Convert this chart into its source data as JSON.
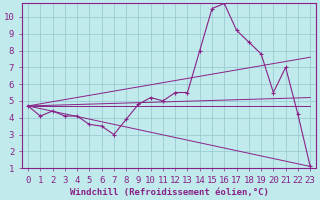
{
  "xlabel": "Windchill (Refroidissement éolien,°C)",
  "xlim": [
    -0.5,
    23.5
  ],
  "ylim": [
    1,
    10.8
  ],
  "xticks": [
    0,
    1,
    2,
    3,
    4,
    5,
    6,
    7,
    8,
    9,
    10,
    11,
    12,
    13,
    14,
    15,
    16,
    17,
    18,
    19,
    20,
    21,
    22,
    23
  ],
  "yticks": [
    1,
    2,
    3,
    4,
    5,
    6,
    7,
    8,
    9,
    10
  ],
  "bg_color": "#c0eaec",
  "grid_color": "#9bcdd4",
  "line_color": "#882288",
  "main_line": {
    "x": [
      0,
      1,
      2,
      3,
      4,
      5,
      6,
      7,
      8,
      9,
      10,
      11,
      12,
      13,
      14,
      15,
      16,
      17,
      18,
      19,
      20,
      21,
      22,
      23
    ],
    "y": [
      4.7,
      4.1,
      4.4,
      4.1,
      4.1,
      3.6,
      3.5,
      3.0,
      3.9,
      4.8,
      5.2,
      5.0,
      5.5,
      5.5,
      8.0,
      10.5,
      10.8,
      9.2,
      8.5,
      7.8,
      5.5,
      7.0,
      4.2,
      1.1
    ]
  },
  "straight_lines": [
    {
      "x": [
        0,
        23
      ],
      "y": [
        4.7,
        7.6
      ]
    },
    {
      "x": [
        0,
        23
      ],
      "y": [
        4.7,
        5.2
      ]
    },
    {
      "x": [
        0,
        23
      ],
      "y": [
        4.7,
        4.7
      ]
    },
    {
      "x": [
        0,
        23
      ],
      "y": [
        4.7,
        1.1
      ]
    }
  ],
  "font_color": "#882288",
  "font_family": "monospace",
  "font_size_label": 6.5,
  "font_size_tick": 6.5
}
